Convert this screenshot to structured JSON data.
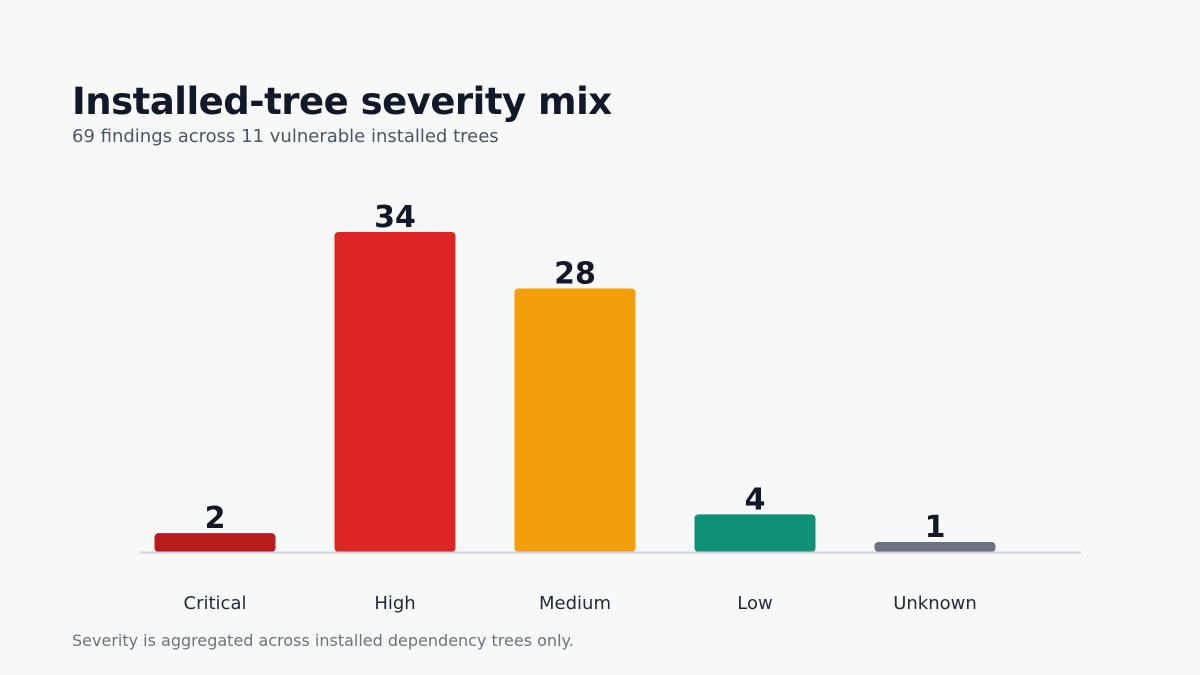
{
  "header": {
    "title": "Installed-tree severity mix",
    "subtitle": "69 findings across 11 vulnerable installed trees"
  },
  "footer": {
    "note": "Severity is aggregated across installed dependency trees only."
  },
  "chart_data": {
    "type": "bar",
    "title": "Installed-tree severity mix",
    "subtitle": "69 findings across 11 vulnerable installed trees",
    "categories": [
      "Critical",
      "High",
      "Medium",
      "Low",
      "Unknown"
    ],
    "values": [
      2,
      34,
      28,
      4,
      1
    ],
    "colors": [
      "#b91c1c",
      "#dc2626",
      "#f59e0b",
      "#0f9178",
      "#6b7280"
    ],
    "xlabel": "",
    "ylabel": "",
    "ylim": [
      0,
      34
    ],
    "grid": false,
    "legend": "none",
    "data_labels": true,
    "axis_color": "#d1d5db"
  }
}
